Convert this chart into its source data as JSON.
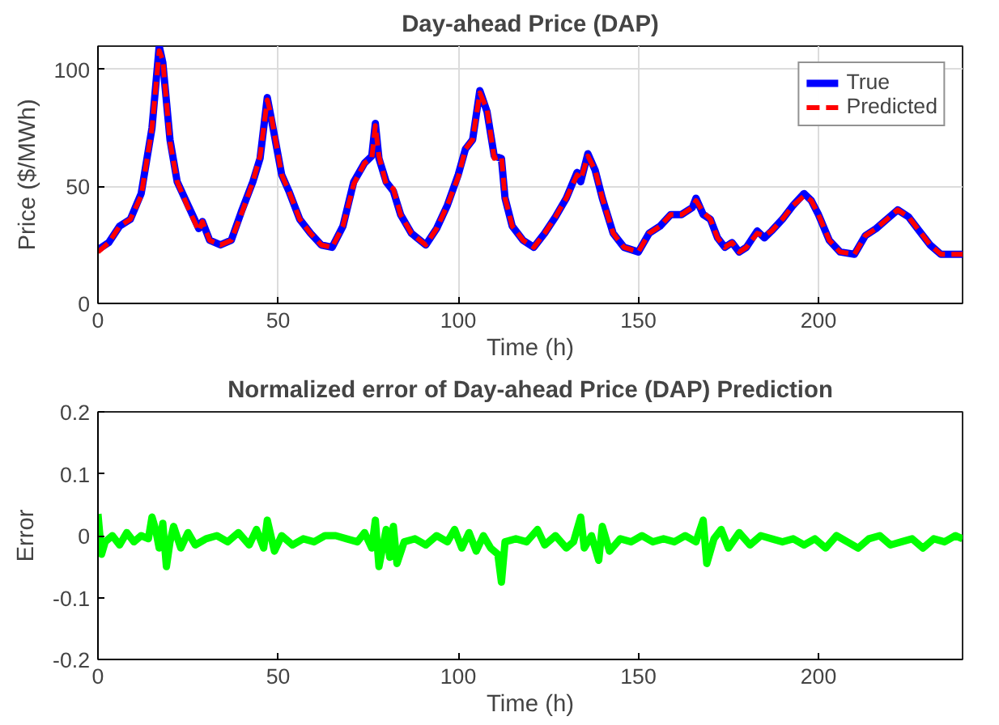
{
  "chart_data": [
    {
      "type": "line",
      "title": "Day-ahead Price (DAP)",
      "xlabel": "Time (h)",
      "ylabel": "Price ($/MWh)",
      "grid": true,
      "legend": "top right",
      "xlim": [
        0,
        240
      ],
      "ylim": [
        0,
        110
      ],
      "xticks": [
        0,
        50,
        100,
        150,
        200
      ],
      "yticks": [
        0,
        50,
        100
      ],
      "x": [
        0,
        3,
        6,
        9,
        12,
        15,
        17,
        18,
        20,
        22,
        25,
        28,
        29,
        31,
        34,
        37,
        40,
        43,
        45,
        47,
        48,
        51,
        53,
        56,
        59,
        62,
        65,
        68,
        71,
        74,
        76,
        77,
        78,
        80,
        82,
        84,
        87,
        91,
        94,
        97,
        100,
        102,
        104,
        106,
        108,
        110,
        112,
        113,
        115,
        118,
        121,
        124,
        127,
        130,
        133,
        134,
        136,
        138,
        140,
        143,
        146,
        150,
        153,
        156,
        159,
        162,
        165,
        166,
        168,
        170,
        172,
        174,
        176,
        178,
        180,
        183,
        185,
        187,
        190,
        193,
        196,
        198,
        200,
        203,
        206,
        210,
        213,
        216,
        219,
        222,
        225,
        228,
        231,
        234,
        240
      ],
      "series": [
        {
          "name": "True",
          "color": "#0000ff",
          "line_style": "solid",
          "values": [
            23,
            26,
            33,
            36,
            47,
            75,
            110,
            103,
            70,
            52,
            42,
            32,
            35,
            27,
            25,
            27,
            40,
            52,
            62,
            88,
            80,
            55,
            48,
            36,
            30,
            25,
            24,
            33,
            52,
            60,
            63,
            77,
            62,
            52,
            48,
            38,
            30,
            25,
            32,
            42,
            55,
            66,
            70,
            91,
            82,
            63,
            62,
            45,
            33,
            27,
            24,
            30,
            37,
            45,
            56,
            52,
            64,
            57,
            45,
            30,
            24,
            22,
            30,
            33,
            38,
            38,
            41,
            45,
            38,
            36,
            28,
            24,
            26,
            22,
            24,
            31,
            28,
            31,
            36,
            42,
            47,
            44,
            38,
            27,
            22,
            21,
            29,
            32,
            36,
            40,
            37,
            31,
            25,
            21,
            21
          ]
        },
        {
          "name": "Predicted",
          "color": "#ff0000",
          "line_style": "dashed",
          "values": [
            22,
            26,
            33,
            36,
            46,
            75,
            108,
            104,
            69,
            52,
            41,
            31,
            35,
            27,
            25,
            27,
            39,
            52,
            63,
            87,
            81,
            55,
            48,
            36,
            30,
            25,
            24,
            33,
            51,
            60,
            62,
            76,
            63,
            51,
            49,
            38,
            30,
            25,
            32,
            42,
            54,
            66,
            70,
            90,
            83,
            62,
            63,
            45,
            33,
            27,
            24,
            30,
            37,
            45,
            55,
            53,
            63,
            57,
            45,
            30,
            24,
            22,
            30,
            33,
            38,
            38,
            41,
            44,
            39,
            36,
            28,
            24,
            26,
            22,
            24,
            30,
            29,
            31,
            36,
            42,
            46,
            44,
            38,
            27,
            22,
            21,
            29,
            32,
            36,
            40,
            37,
            31,
            25,
            21,
            21
          ]
        }
      ]
    },
    {
      "type": "line",
      "title": "Normalized error of Day-ahead Price (DAP) Prediction",
      "xlabel": "Time (h)",
      "ylabel": "Error",
      "grid": false,
      "xlim": [
        0,
        240
      ],
      "ylim": [
        -0.2,
        0.2
      ],
      "xticks": [
        0,
        50,
        100,
        150,
        200
      ],
      "yticks": [
        -0.2,
        -0.1,
        0,
        0.1,
        0.2
      ],
      "x": [
        0,
        1,
        2,
        4,
        6,
        8,
        10,
        12,
        14,
        15,
        16,
        17,
        18,
        19,
        20,
        21,
        23,
        25,
        27,
        30,
        33,
        36,
        39,
        42,
        44,
        46,
        47,
        49,
        51,
        54,
        57,
        60,
        63,
        66,
        69,
        72,
        74,
        76,
        77,
        78,
        80,
        81,
        82,
        83,
        85,
        88,
        91,
        94,
        97,
        99,
        101,
        103,
        105,
        107,
        109,
        111,
        112,
        113,
        116,
        119,
        122,
        124,
        127,
        130,
        132,
        134,
        135,
        137,
        139,
        140,
        142,
        145,
        148,
        151,
        154,
        157,
        160,
        163,
        166,
        168,
        169,
        171,
        173,
        175,
        178,
        181,
        184,
        187,
        190,
        193,
        196,
        199,
        202,
        205,
        208,
        211,
        214,
        217,
        220,
        223,
        226,
        229,
        232,
        235,
        238,
        240
      ],
      "series": [
        {
          "color": "#00ff00",
          "line_style": "solid",
          "values": [
            0.035,
            -0.03,
            -0.01,
            0.0,
            -0.015,
            0.005,
            -0.01,
            0.0,
            -0.005,
            0.03,
            0.01,
            -0.02,
            0.02,
            -0.05,
            -0.01,
            0.015,
            -0.02,
            0.005,
            -0.015,
            -0.005,
            0.0,
            -0.01,
            0.005,
            -0.015,
            0.01,
            -0.02,
            0.025,
            -0.025,
            0.0,
            -0.015,
            -0.005,
            -0.01,
            0.0,
            0.0,
            -0.005,
            -0.01,
            0.005,
            -0.02,
            0.025,
            -0.05,
            0.01,
            -0.035,
            0.015,
            -0.045,
            -0.01,
            -0.005,
            -0.015,
            0.0,
            -0.01,
            0.01,
            -0.02,
            0.005,
            -0.025,
            0.0,
            -0.02,
            -0.03,
            -0.075,
            -0.01,
            -0.005,
            -0.01,
            0.01,
            -0.015,
            0.0,
            -0.02,
            -0.01,
            0.03,
            -0.02,
            0.0,
            -0.04,
            0.015,
            -0.025,
            -0.005,
            -0.01,
            0.0,
            -0.01,
            -0.005,
            -0.01,
            0.0,
            -0.01,
            0.025,
            -0.045,
            -0.005,
            0.01,
            -0.02,
            0.005,
            -0.015,
            0.0,
            -0.005,
            -0.01,
            -0.005,
            -0.015,
            -0.005,
            -0.02,
            0.0,
            -0.01,
            -0.02,
            -0.005,
            0.0,
            -0.015,
            -0.01,
            -0.005,
            -0.02,
            -0.005,
            -0.01,
            0.0,
            -0.005
          ]
        }
      ]
    }
  ]
}
